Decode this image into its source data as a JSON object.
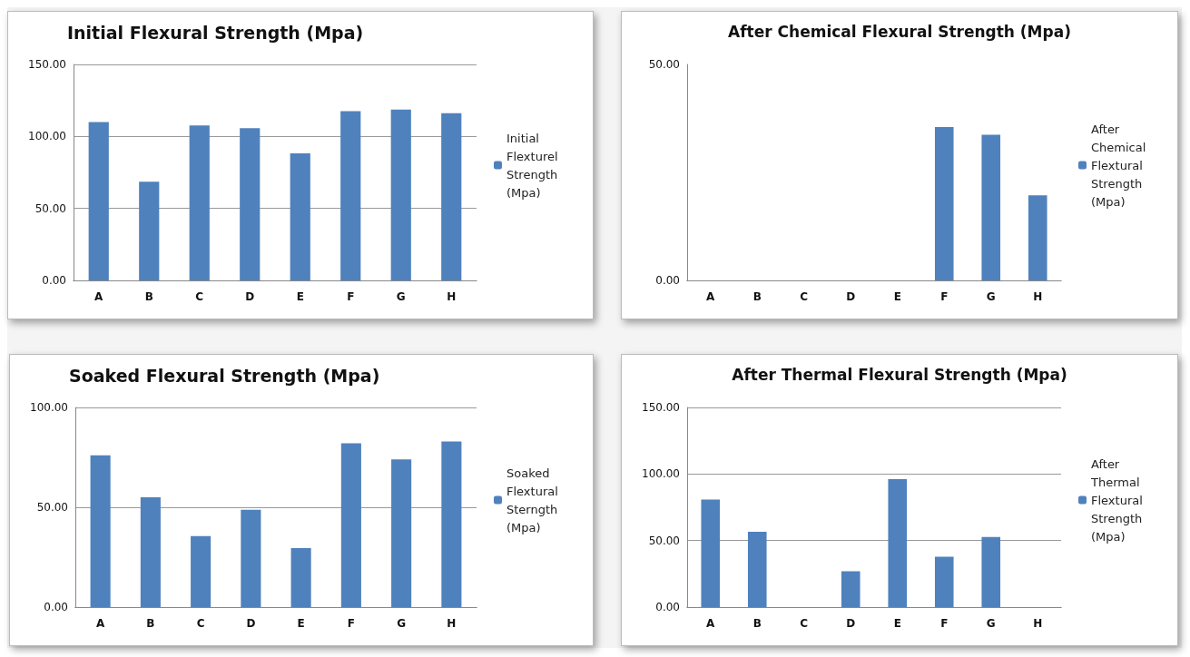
{
  "chart_data": [
    {
      "type": "bar",
      "title": "Initial Flexural Strength (Mpa)",
      "categories": [
        "A",
        "B",
        "C",
        "D",
        "E",
        "F",
        "G",
        "H"
      ],
      "series": [
        {
          "name": "Initial Flexturel Strength (Mpa)",
          "color": "#4f81bd",
          "values": [
            110,
            68.5,
            107.6,
            105.8,
            88.3,
            117.5,
            118.6,
            116.2
          ]
        }
      ],
      "ylim": [
        0,
        150
      ],
      "yticks": [
        {
          "value": 0,
          "label": "0.00"
        },
        {
          "value": 50,
          "label": "50.00"
        },
        {
          "value": 100,
          "label": "100.00"
        },
        {
          "value": 150,
          "label": "150.00"
        }
      ],
      "grid": "y",
      "legend": "right"
    },
    {
      "type": "bar",
      "title": "After Chemical Flexural Strength (Mpa)",
      "categories": [
        "A",
        "B",
        "C",
        "D",
        "E",
        "F",
        "G",
        "H"
      ],
      "series": [
        {
          "name": "After Chemical Flextural Strength (Mpa)",
          "color": "#4f81bd",
          "values": [
            0,
            0,
            0,
            0,
            0,
            35.5,
            33.7,
            19.7
          ]
        }
      ],
      "ylim": [
        0,
        50
      ],
      "yticks": [
        {
          "value": 0,
          "label": "0.00"
        },
        {
          "value": 50,
          "label": "50.00"
        }
      ],
      "legend": "right"
    },
    {
      "type": "bar",
      "title": "Soaked Flexural Strength (Mpa)",
      "categories": [
        "A",
        "B",
        "C",
        "D",
        "E",
        "F",
        "G",
        "H"
      ],
      "series": [
        {
          "name": "Soaked Flextural Sterngth (Mpa)",
          "color": "#4f81bd",
          "values": [
            76,
            55,
            35.6,
            48.8,
            29.5,
            82,
            74,
            83
          ]
        }
      ],
      "ylim": [
        0,
        100
      ],
      "yticks": [
        {
          "value": 0,
          "label": "0.00"
        },
        {
          "value": 50,
          "label": "50.00"
        },
        {
          "value": 100,
          "label": "100.00"
        }
      ],
      "grid": "y",
      "legend": "right"
    },
    {
      "type": "bar",
      "title": "After Thermal Flexural Strength (Mpa)",
      "categories": [
        "A",
        "B",
        "C",
        "D",
        "E",
        "F",
        "G",
        "H"
      ],
      "series": [
        {
          "name": "After Thermal Flextural Strength (Mpa)",
          "color": "#4f81bd",
          "values": [
            80.8,
            56.6,
            0,
            26.9,
            96.2,
            37.9,
            52.6,
            0
          ]
        }
      ],
      "ylim": [
        0,
        150
      ],
      "yticks": [
        {
          "value": 0,
          "label": "0.00"
        },
        {
          "value": 50,
          "label": "50.00"
        },
        {
          "value": 100,
          "label": "100.00"
        },
        {
          "value": 150,
          "label": "150.00"
        }
      ],
      "grid": "y",
      "legend": "right"
    }
  ]
}
